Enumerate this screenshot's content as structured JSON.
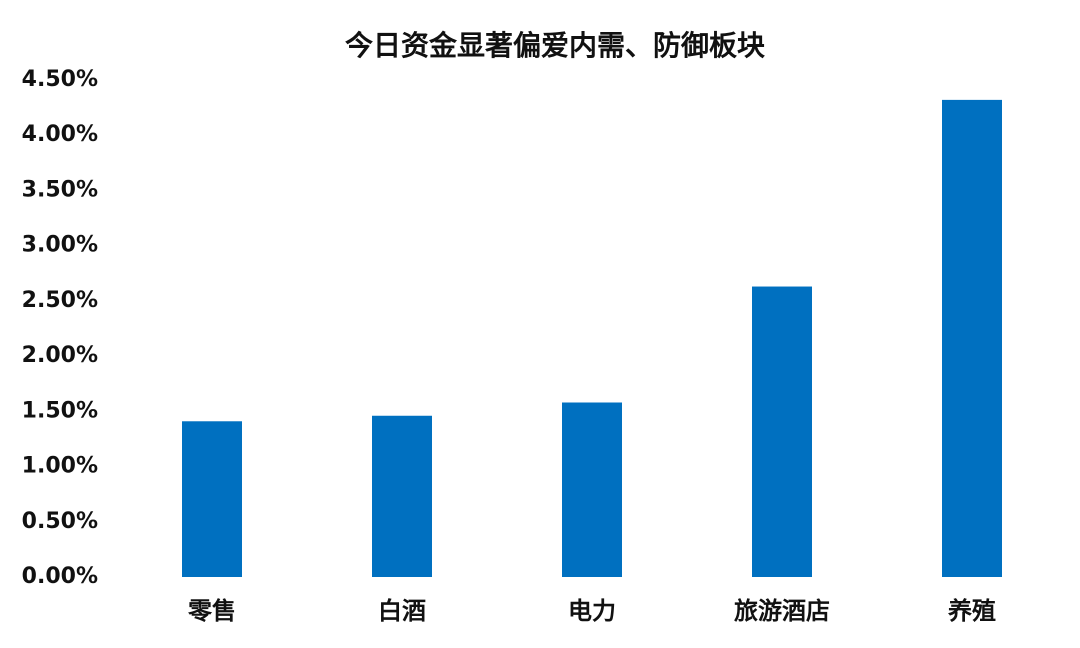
{
  "chart_data": {
    "type": "bar",
    "title": "今日资金显著偏爱内需、防御板块",
    "categories": [
      "零售",
      "白酒",
      "电力",
      "旅游酒店",
      "养殖"
    ],
    "values": [
      1.41,
      1.46,
      1.58,
      2.63,
      4.32
    ],
    "color": "#0070c0",
    "ylim": [
      0,
      4.5
    ],
    "yticks": [
      {
        "value": 0,
        "label": "0.00%"
      },
      {
        "value": 0.5,
        "label": "0.50%"
      },
      {
        "value": 1,
        "label": "1.00%"
      },
      {
        "value": 1.5,
        "label": "1.50%"
      },
      {
        "value": 2,
        "label": "2.00%"
      },
      {
        "value": 2.5,
        "label": "2.50%"
      },
      {
        "value": 3,
        "label": "3.00%"
      },
      {
        "value": 3.5,
        "label": "3.50%"
      },
      {
        "value": 4,
        "label": "4.00%"
      },
      {
        "value": 4.5,
        "label": "4.50%"
      }
    ],
    "grid": false
  }
}
